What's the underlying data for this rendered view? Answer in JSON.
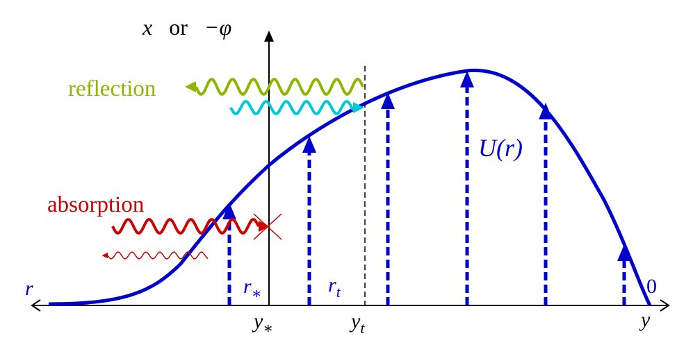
{
  "vertical_axis": [
    "x",
    "or",
    "−φ"
  ],
  "waves": {
    "reflection": "reflection",
    "absorption": "absorption"
  },
  "potential": "U(r)",
  "r_axis": {
    "r": "r",
    "r_star": {
      "base": "r",
      "sub": "∗"
    },
    "r_t": {
      "base": "r",
      "sub": "t"
    },
    "zero": "0"
  },
  "y_axis": {
    "y_star": {
      "base": "y",
      "sub": "∗"
    },
    "y_t": {
      "base": "y",
      "sub": "t"
    },
    "y": "y"
  }
}
